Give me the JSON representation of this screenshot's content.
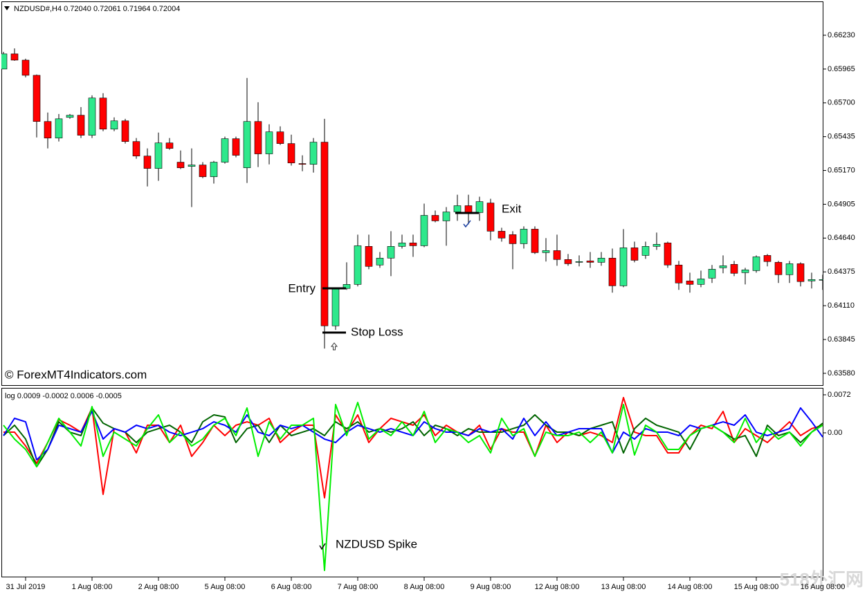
{
  "chart_data": [
    {
      "type": "candlestick",
      "title": "NZDUSD#,H4  0.72040 0.72061 0.71964 0.72004",
      "annotations": [
        "Entry",
        "Stop Loss",
        "Exit",
        "© ForexMT4Indicators.com"
      ],
      "up_color": "#2ee88c",
      "down_color": "#ff0000",
      "ylim": [
        0.63482,
        0.6649
      ],
      "yticks": [
        {
          "value": 0.6623,
          "label": "0.66230"
        },
        {
          "value": 0.65965,
          "label": "0.65965"
        },
        {
          "value": 0.657,
          "label": "0.65700"
        },
        {
          "value": 0.65435,
          "label": "0.65435"
        },
        {
          "value": 0.6517,
          "label": "0.65170"
        },
        {
          "value": 0.64905,
          "label": "0.64905"
        },
        {
          "value": 0.6464,
          "label": "0.64640"
        },
        {
          "value": 0.64375,
          "label": "0.64375"
        },
        {
          "value": 0.6411,
          "label": "0.64110"
        },
        {
          "value": 0.63845,
          "label": "0.63845"
        },
        {
          "value": 0.6358,
          "label": "0.63580"
        }
      ],
      "open": [
        0.65965,
        0.66084,
        0.66035,
        0.65916,
        0.65554,
        0.65424,
        0.65586,
        0.65603,
        0.65446,
        0.65738,
        0.65494,
        0.65559,
        0.65397,
        0.65283,
        0.65186,
        0.65386,
        0.65235,
        0.65202,
        0.65213,
        0.65121,
        0.65235,
        0.65419,
        0.65191,
        0.65554,
        0.653,
        0.65473,
        0.65381,
        0.65224,
        0.65218,
        0.65392,
        0.63952,
        0.64245,
        0.64277,
        0.64575,
        0.64429,
        0.64483,
        0.64575,
        0.64602,
        0.6458,
        0.64818,
        0.64775,
        0.64845,
        0.64894,
        0.6484,
        0.64915,
        0.64694,
        0.64667,
        0.64596,
        0.6471,
        0.64526,
        0.64542,
        0.64472,
        0.6445,
        0.64461,
        0.6445,
        0.64483,
        0.64266,
        0.64564,
        0.64504,
        0.64575,
        0.64602,
        0.64429,
        0.64304,
        0.64277,
        0.64326,
        0.64407,
        0.64434,
        0.64369,
        0.64385,
        0.64504,
        0.6445,
        0.64353,
        0.64439,
        0.64304,
        0.6431
      ],
      "high": [
        0.661,
        0.66127,
        0.66046,
        0.65922,
        0.65624,
        0.65613,
        0.65613,
        0.65667,
        0.65759,
        0.65776,
        0.65586,
        0.65575,
        0.65424,
        0.65343,
        0.65467,
        0.65424,
        0.65327,
        0.65343,
        0.65235,
        0.65245,
        0.65435,
        0.65435,
        0.65895,
        0.65705,
        0.65532,
        0.65516,
        0.65451,
        0.65289,
        0.65424,
        0.65575,
        0.6425,
        0.6445,
        0.64667,
        0.64667,
        0.64531,
        0.64694,
        0.64667,
        0.64667,
        0.6491,
        0.64856,
        0.64883,
        0.6498,
        0.6498,
        0.64964,
        0.64948,
        0.64721,
        0.64694,
        0.64732,
        0.64732,
        0.6464,
        0.64667,
        0.64515,
        0.64504,
        0.64531,
        0.64531,
        0.64558,
        0.6471,
        0.64612,
        0.64612,
        0.64683,
        0.64612,
        0.64461,
        0.64369,
        0.64385,
        0.64429,
        0.64504,
        0.64461,
        0.64407,
        0.64504,
        0.64515,
        0.64461,
        0.64461,
        0.6445,
        0.64369,
        0.64353
      ],
      "low": [
        0.65965,
        0.6603,
        0.659,
        0.65429,
        0.65343,
        0.65397,
        0.65575,
        0.65424,
        0.65424,
        0.65478,
        0.65478,
        0.65381,
        0.65262,
        0.65045,
        0.65089,
        0.65332,
        0.65181,
        0.64883,
        0.6511,
        0.65067,
        0.65224,
        0.65273,
        0.65072,
        0.65197,
        0.65218,
        0.6537,
        0.65208,
        0.65164,
        0.65153,
        0.63774,
        0.6392,
        0.64234,
        0.64261,
        0.64396,
        0.64407,
        0.64342,
        0.64558,
        0.64493,
        0.64569,
        0.64764,
        0.6458,
        0.64775,
        0.64748,
        0.64775,
        0.64623,
        0.64612,
        0.64396,
        0.64558,
        0.64515,
        0.64456,
        0.64423,
        0.64423,
        0.64418,
        0.64407,
        0.64423,
        0.64212,
        0.64255,
        0.6445,
        0.64477,
        0.64548,
        0.64407,
        0.64234,
        0.64212,
        0.64255,
        0.64288,
        0.64364,
        0.64342,
        0.64277,
        0.64369,
        0.64418,
        0.64288,
        0.64288,
        0.64261,
        0.64245,
        0.64234
      ],
      "close": [
        0.66084,
        0.66035,
        0.65916,
        0.65554,
        0.65424,
        0.65575,
        0.65603,
        0.65446,
        0.65738,
        0.65494,
        0.65559,
        0.65397,
        0.65283,
        0.65186,
        0.65386,
        0.65343,
        0.65191,
        0.65213,
        0.65121,
        0.65235,
        0.65419,
        0.65289,
        0.65554,
        0.653,
        0.65473,
        0.65381,
        0.65229,
        0.65218,
        0.65392,
        0.63952,
        0.64245,
        0.64277,
        0.6458,
        0.64418,
        0.64483,
        0.64575,
        0.64602,
        0.6458,
        0.64818,
        0.64775,
        0.64845,
        0.64894,
        0.6484,
        0.64926,
        0.64694,
        0.6464,
        0.64596,
        0.6471,
        0.64526,
        0.64542,
        0.64472,
        0.64439,
        0.64456,
        0.6445,
        0.64483,
        0.64266,
        0.64564,
        0.64466,
        0.64575,
        0.64591,
        0.64429,
        0.64288,
        0.64277,
        0.6432,
        0.64396,
        0.64423,
        0.64364,
        0.64391,
        0.64493,
        0.64456,
        0.64353,
        0.64439,
        0.64299,
        0.64315,
        0.64315
      ]
    },
    {
      "type": "line",
      "title": "log 0.0009 -0.0002 0.0006 -0.0005",
      "annotations": [
        "NZDUSD Spike"
      ],
      "watermark": "518外汇网",
      "categories": [
        null,
        null,
        "31 Jul 2019",
        null,
        null,
        null,
        null,
        null,
        "1 Aug 08:00",
        null,
        null,
        null,
        null,
        null,
        "2 Aug 08:00",
        null,
        null,
        null,
        null,
        null,
        "5 Aug 08:00",
        null,
        null,
        null,
        null,
        null,
        "6 Aug 08:00",
        null,
        null,
        null,
        null,
        null,
        "7 Aug 08:00",
        null,
        null,
        null,
        null,
        null,
        "8 Aug 08:00",
        null,
        null,
        null,
        null,
        null,
        "9 Aug 08:00",
        null,
        null,
        null,
        null,
        null,
        "12 Aug 08:00",
        null,
        null,
        null,
        null,
        null,
        "13 Aug 08:00",
        null,
        null,
        null,
        null,
        null,
        "14 Aug 08:00",
        null,
        null,
        null,
        null,
        null,
        "15 Aug 08:00",
        null,
        null,
        null,
        null,
        null,
        "16 Aug 08:00"
      ],
      "ylim": [
        -0.02736,
        0.00838
      ],
      "yticks": [
        0.0072,
        {
          "value": 0,
          "label": "0.00"
        }
      ],
      "series": [
        {
          "color": "#ff0000",
          "values": [
            0.00013,
            0.00013,
            -0.00249,
            -0.00576,
            -0.00183,
            0.00249,
            0.00144,
            0.00013,
            0.00471,
            -0.01165,
            0.00079,
            0.00013,
            -0.0038,
            0.00144,
            0.00144,
            -0.00183,
            0.00144,
            -0.00445,
            -0.00183,
            0.00144,
            -0.00052,
            0.00144,
            0.00209,
            0.00144,
            0.00275,
            -0.00183,
            0.00013,
            0.00144,
            0.00144,
            -0.0123,
            0.0034,
            0.00013,
            0.0034,
            -0.00183,
            0.00079,
            0.00275,
            0.00209,
            0.00144,
            0.0034,
            -0.00052,
            0.00144,
            0.00013,
            -0.00052,
            0.00144,
            -0.00314,
            0.00079,
            0.00013,
            0.00013,
            -0.00445,
            0.00144,
            -0.00183,
            0.00013,
            -0.00052,
            0.00013,
            -0.00052,
            -0.00183,
            0.00668,
            0.00013,
            -0.00052,
            -0.00052,
            -0.0038,
            -0.0038,
            -0.00052,
            0.00144,
            0.00079,
            0.00406,
            -0.00183,
            0.00079,
            -0.00052,
            -0.00183,
            0.00013,
            0.00209,
            -0.00052,
            0.00079,
            0.00144
          ]
        },
        {
          "color": "#006400",
          "values": [
            -0.00052,
            0.00144,
            -0.00118,
            -0.00641,
            -0.00314,
            0.00209,
            0.00013,
            -0.00052,
            0.00471,
            0.00183,
            0.00079,
            0.00013,
            -0.00183,
            0.00013,
            0.00079,
            0.00144,
            0.00013,
            -0.00183,
            0.00209,
            0.0034,
            0.00301,
            -0.00183,
            0.00079,
            0.00144,
            -0.00183,
            0.00144,
            -0.00052,
            0.00013,
            0.00079,
            -0.00052,
            0.00209,
            0.00079,
            0.00209,
            0.00013,
            0.00079,
            0.00013,
            0.00079,
            0.00209,
            -0.00052,
            0.00144,
            0.00079,
            -0.00052,
            0.00079,
            0.00013,
            0.00013,
            0.00013,
            0.00079,
            0.00144,
            0.0034,
            0.00144,
            0.00013,
            0.00013,
            -0.00052,
            0.00079,
            0.00144,
            0.00209,
            -0.0038,
            0.00079,
            0.00275,
            0.00144,
            0.00079,
            0.00013,
            -0.00314,
            0.00079,
            0.00144,
            0.00013,
            -0.00118,
            -0.00052,
            -0.00445,
            0.00144,
            -0.00052,
            0.00013,
            -0.00183,
            0.00013,
            0.00183
          ]
        },
        {
          "color": "#0000ff",
          "values": [
            -0.00052,
            0.00275,
            0.00209,
            -0.00511,
            -0.00314,
            0.00144,
            0.00079,
            0.00013,
            0.00406,
            -0.00118,
            0.00079,
            0.00013,
            0.00144,
            0.00079,
            0.00144,
            0.00013,
            -0.00052,
            0.00013,
            0.00079,
            0.00209,
            0.00144,
            0.00013,
            0.0034,
            0.00013,
            -0.00052,
            0.00144,
            0.00079,
            0.00144,
            0.00013,
            -0.00118,
            -0.00183,
            0.00013,
            0.00144,
            0.00079,
            0.00013,
            0.00079,
            0.00013,
            -0.00052,
            0.00209,
            0.00079,
            0.00013,
            0.00013,
            -0.00052,
            0.00079,
            0.00013,
            0.00079,
            -0.00118,
            0.00275,
            -0.00052,
            0.00209,
            -0.00052,
            0.00013,
            0.00079,
            0.00079,
            0.00079,
            -0.0038,
            0.00013,
            -0.00118,
            0.00079,
            0.00013,
            0.00013,
            -0.00052,
            0.00144,
            0.00079,
            0.00144,
            0.00209,
            0.00144,
            0.0034,
            0.00013,
            -0.00052,
            0.00013,
            0.00079,
            0.00471,
            0.00209,
            -0.00079
          ]
        },
        {
          "color": "#00ee00",
          "values": [
            0.00144,
            -0.00118,
            -0.00314,
            -0.00641,
            -0.00183,
            0.00275,
            0.00013,
            -0.00249,
            0.00497,
            -0.00445,
            0.00013,
            -0.00118,
            -0.00249,
            0.00079,
            0.0034,
            -0.00183,
            0.00013,
            -0.00249,
            -0.00118,
            0.00144,
            0.00275,
            -0.00052,
            0.00471,
            -0.00445,
            0.00209,
            -0.00118,
            0.00144,
            0.00144,
            0.00275,
            -0.02605,
            0.00537,
            -0.00052,
            0.00576,
            -0.00118,
            0.00079,
            -0.00052,
            0.00209,
            -0.00052,
            0.00406,
            -0.00183,
            0.00079,
            0.00013,
            -0.00183,
            -0.00052,
            -0.0038,
            0.00275,
            -0.00052,
            0.00079,
            -0.00445,
            0.00013,
            -0.00052,
            -0.00052,
            0.00013,
            -0.00183,
            0.00013,
            -0.0038,
            0.00537,
            -0.00419,
            0.00144,
            0.00013,
            -0.00314,
            -0.00314,
            -0.00052,
            0.00079,
            0.00144,
            0.00013,
            -0.00183,
            0.00275,
            -0.00183,
            0.00079,
            -0.00118,
            0.00013,
            -0.00249,
            0.00013,
            0.00144
          ]
        }
      ]
    }
  ]
}
